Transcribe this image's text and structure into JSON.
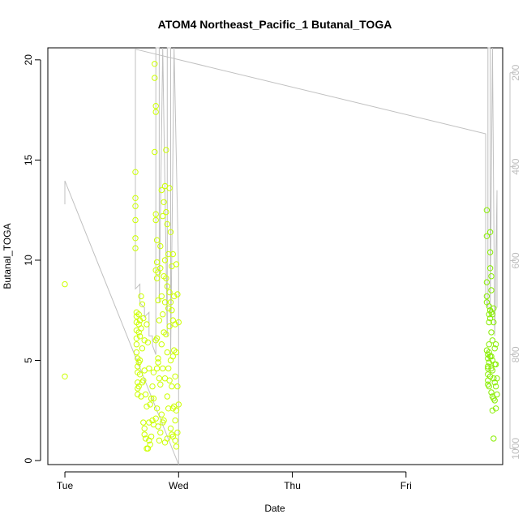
{
  "chart_data": {
    "type": "scatter",
    "title": "ATOM4 Northeast_Pacific_1 Butanal_TOGA",
    "xlabel": "Date",
    "ylabel": "Butanal_TOGA",
    "x_tick_labels": [
      "Tue",
      "Wed",
      "Thu",
      "Fri"
    ],
    "x_ticks_days": [
      0,
      1,
      2,
      3
    ],
    "xlim_days": [
      -0.15,
      3.85
    ],
    "ylim": [
      -0.2,
      20.6
    ],
    "y_ticks": [
      0,
      5,
      10,
      15,
      20
    ],
    "y2_ticks": [
      200,
      400,
      600,
      800,
      1000
    ],
    "y2lim": [
      147,
      1034
    ],
    "y2_reversed": true,
    "grid": false,
    "colors": {
      "points_early": "#ccff00",
      "points_late": "#88ee00",
      "line": "#c0c0c0",
      "right_axis": "#c0c0c0"
    },
    "series": [
      {
        "type": "scatter",
        "x": [
          0,
          0,
          0.62,
          0.62,
          0.62,
          0.62,
          0.62,
          0.62,
          0.63,
          0.63,
          0.63,
          0.63,
          0.63,
          0.63,
          0.63,
          0.64,
          0.64,
          0.64,
          0.64,
          0.64,
          0.64,
          0.65,
          0.65,
          0.65,
          0.65,
          0.65,
          0.66,
          0.66,
          0.66,
          0.66,
          0.67,
          0.67,
          0.67,
          0.68,
          0.68,
          0.68,
          0.69,
          0.69,
          0.69,
          0.7,
          0.7,
          0.7,
          0.7,
          0.71,
          0.71,
          0.72,
          0.72,
          0.72,
          0.73,
          0.73,
          0.74,
          0.74,
          0.74,
          0.75,
          0.75,
          0.76,
          0.76,
          0.77,
          0.77,
          0.78,
          0.78,
          0.78,
          0.79,
          0.79,
          0.79,
          0.8,
          0.8,
          0.8,
          0.8,
          0.8,
          0.8,
          0.8,
          0.81,
          0.81,
          0.81,
          0.81,
          0.81,
          0.81,
          0.82,
          0.82,
          0.82,
          0.82,
          0.82,
          0.83,
          0.83,
          0.83,
          0.84,
          0.84,
          0.84,
          0.84,
          0.85,
          0.85,
          0.85,
          0.85,
          0.86,
          0.86,
          0.86,
          0.86,
          0.87,
          0.87,
          0.87,
          0.87,
          0.88,
          0.88,
          0.88,
          0.88,
          0.88,
          0.89,
          0.89,
          0.89,
          0.89,
          0.9,
          0.9,
          0.9,
          0.9,
          0.9,
          0.91,
          0.91,
          0.91,
          0.91,
          0.92,
          0.92,
          0.92,
          0.92,
          0.93,
          0.93,
          0.93,
          0.93,
          0.94,
          0.94,
          0.94,
          0.94,
          0.95,
          0.95,
          0.95,
          0.95,
          0.95,
          0.96,
          0.96,
          0.96,
          0.97,
          0.97,
          0.97,
          0.97,
          0.98,
          0.98,
          0.98,
          0.98,
          0.99,
          0.99,
          0.99,
          1.0,
          1.0
        ],
        "y": [
          8.8,
          4.2,
          14.4,
          13.1,
          12.7,
          12.0,
          11.1,
          10.6,
          7.4,
          7.2,
          6.9,
          6.5,
          6.1,
          5.8,
          5.4,
          5.1,
          4.7,
          4.4,
          3.9,
          3.6,
          3.3,
          7.3,
          6.8,
          6.4,
          4.9,
          3.7,
          7.0,
          6.2,
          5.0,
          4.3,
          8.2,
          6.6,
          3.2,
          7.8,
          5.6,
          3.9,
          7.1,
          4.0,
          1.9,
          6.0,
          4.5,
          1.6,
          1.3,
          3.3,
          1.1,
          6.8,
          2.7,
          0.6,
          5.9,
          0.6,
          4.6,
          1.9,
          1.0,
          2.8,
          0.8,
          3.1,
          1.2,
          3.7,
          2.0,
          4.4,
          3.1,
          1.8,
          19.8,
          19.1,
          15.4,
          17.7,
          17.4,
          12.3,
          12.0,
          9.5,
          6.0,
          2.1,
          11.0,
          9.9,
          9.1,
          6.1,
          4.6,
          2.6,
          9.4,
          8.0,
          5.1,
          4.9,
          1.7,
          7.0,
          4.1,
          1.0,
          10.7,
          9.6,
          3.8,
          1.4,
          13.5,
          8.2,
          5.8,
          2.3,
          12.2,
          7.3,
          4.6,
          1.9,
          12.9,
          9.2,
          6.4,
          2.0,
          13.7,
          10.0,
          7.9,
          4.1,
          0.9,
          15.5,
          12.4,
          9.1,
          6.3,
          11.8,
          8.7,
          5.4,
          3.2,
          1.1,
          10.3,
          7.6,
          4.6,
          2.6,
          13.6,
          8.4,
          6.7,
          4.0,
          11.4,
          7.9,
          5.0,
          1.6,
          9.7,
          7.5,
          3.7,
          1.3,
          10.3,
          7.0,
          5.2,
          2.6,
          1.2,
          8.2,
          5.5,
          2.7,
          6.8,
          4.2,
          2.0,
          1.0,
          9.8,
          5.4,
          2.5,
          0.7,
          8.3,
          3.7,
          1.4,
          6.9,
          2.8
        ]
      },
      {
        "type": "scatter",
        "x": [
          3.71,
          3.71,
          3.71,
          3.71,
          3.71,
          3.71,
          3.72,
          3.72,
          3.72,
          3.72,
          3.72,
          3.72,
          3.72,
          3.73,
          3.73,
          3.73,
          3.73,
          3.73,
          3.73,
          3.73,
          3.74,
          3.74,
          3.74,
          3.74,
          3.74,
          3.74,
          3.74,
          3.75,
          3.75,
          3.75,
          3.75,
          3.75,
          3.75,
          3.75,
          3.76,
          3.76,
          3.76,
          3.76,
          3.76,
          3.76,
          3.77,
          3.77,
          3.77,
          3.77,
          3.77,
          3.78,
          3.78,
          3.78,
          3.78,
          3.79,
          3.79,
          3.79,
          3.79,
          3.8,
          3.8
        ],
        "y": [
          12.5,
          11.2,
          8.9,
          8.2,
          7.9,
          5.5,
          5.3,
          5.1,
          4.7,
          4.6,
          4.3,
          4.0,
          3.8,
          7.7,
          7.3,
          6.9,
          5.8,
          5.4,
          4.9,
          3.7,
          11.4,
          10.4,
          9.6,
          7.5,
          7.1,
          5.2,
          4.2,
          9.2,
          8.5,
          7.4,
          6.4,
          5.2,
          4.6,
          3.4,
          7.3,
          6.0,
          5.0,
          4.5,
          3.2,
          2.5,
          4.1,
          3.1,
          1.1,
          7.6,
          6.9,
          5.6,
          4.8,
          3.9,
          3.0,
          5.8,
          4.8,
          3.7,
          2.6,
          4.1,
          3.3
        ]
      },
      {
        "type": "line",
        "axis": "right",
        "x": [
          0.0,
          0.0,
          1.0,
          1.0,
          0.96,
          0.96,
          0.93,
          0.93,
          0.9,
          0.9,
          0.86,
          0.86,
          0.83,
          0.83,
          0.8,
          0.8,
          0.77,
          0.77,
          0.74,
          0.74,
          0.7,
          0.7,
          0.66,
          0.66,
          0.62,
          0.62,
          3.7,
          3.7,
          3.72,
          3.72,
          3.74,
          3.74,
          3.76,
          3.76,
          3.78,
          3.78,
          3.8,
          3.8
        ],
        "y": [
          480,
          430,
          1034,
          625,
          147,
          147,
          800,
          147,
          147,
          760,
          147,
          147,
          690,
          147,
          147,
          800,
          780,
          760,
          760,
          710,
          720,
          700,
          690,
          650,
          660,
          150,
          330,
          680,
          700,
          147,
          147,
          720,
          147,
          147,
          760,
          760,
          450,
          700
        ]
      }
    ]
  }
}
